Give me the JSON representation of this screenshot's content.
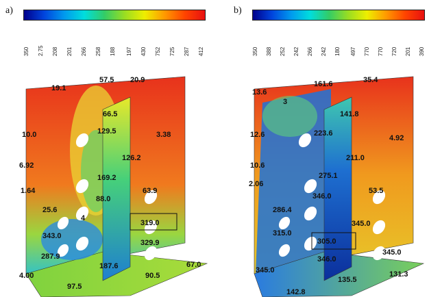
{
  "panel_a": {
    "label": "a)",
    "scale_ticks": [
      "350",
      "2.75",
      "208",
      "201",
      "266",
      "258",
      "188",
      "197",
      "430",
      "752",
      "725",
      "287",
      "412"
    ],
    "values": {
      "v1": "19.1",
      "v2": "57.5",
      "v3": "20.9",
      "v4": "66.5",
      "v5": "129.5",
      "v6": "10.0",
      "v7": "3.38",
      "v8": "126.2",
      "v9": "6.92",
      "v10": "169.2",
      "v11": "1.64",
      "v12": "88.0",
      "v13": "63.9",
      "v14": "25.6",
      "v15": "4",
      "v16": "343.0",
      "v17": "319.0",
      "v18": "329.9",
      "v19": "287.9",
      "v20": "4.00",
      "v21": "187.6",
      "v22": "90.5",
      "v23": "67.0",
      "v24": "97.5"
    }
  },
  "panel_b": {
    "label": "b)",
    "scale_ticks": [
      "350",
      "388",
      "252",
      "242",
      "266",
      "242",
      "180",
      "497",
      "770",
      "770",
      "720",
      "201",
      "390"
    ],
    "values": {
      "v1": "13.6",
      "v2": "161.6",
      "v3": "35.4",
      "v4": "3",
      "v5": "141.8",
      "v6": "12.6",
      "v7": "223.6",
      "v8": "4.92",
      "v9": "211.0",
      "v10": "10.6",
      "v11": "275.1",
      "v12": "2.06",
      "v13": "346.0",
      "v14": "53.5",
      "v15": "286.4",
      "v16": "345.0",
      "v17": "315.0",
      "v18": "305.0",
      "v19": "346.0",
      "v20": "345.0",
      "v21": "135.5",
      "v22": "131.3",
      "v23": "142.8",
      "v24": "345.0"
    }
  },
  "colors": {
    "hot": "#e8321c",
    "warm": "#f29a1e",
    "mid": "#e7e82a",
    "cool": "#35c3c4",
    "cold": "#1e5fd0",
    "deep": "#0b2f9c"
  }
}
